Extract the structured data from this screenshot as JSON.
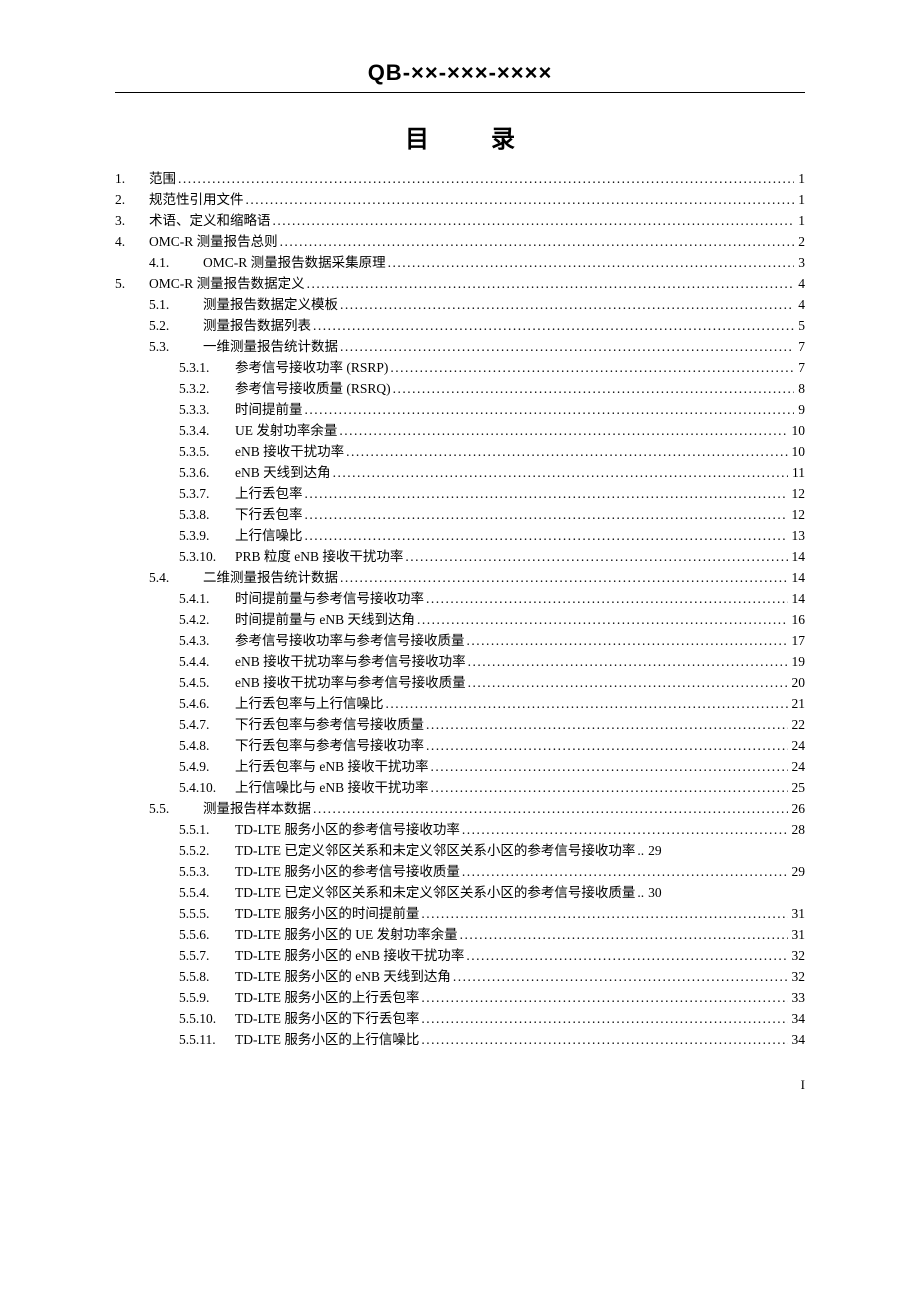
{
  "header_code": "QB-××-×××-××××",
  "toc_title": "目 录",
  "page_number": "I",
  "entries": [
    {
      "level": 0,
      "num": "1.",
      "label": "范围",
      "page": "1"
    },
    {
      "level": 0,
      "num": "2.",
      "label": "规范性引用文件",
      "page": "1"
    },
    {
      "level": 0,
      "num": "3.",
      "label": "术语、定义和缩略语",
      "page": "1"
    },
    {
      "level": 0,
      "num": "4.",
      "label": "OMC-R 测量报告总则 ",
      "page": "2"
    },
    {
      "level": 1,
      "num": "4.1.",
      "label": "OMC-R 测量报告数据采集原理 ",
      "page": "3"
    },
    {
      "level": 0,
      "num": "5.",
      "label": "OMC-R 测量报告数据定义 ",
      "page": "4"
    },
    {
      "level": 1,
      "num": "5.1.",
      "label": "测量报告数据定义模板",
      "page": "4"
    },
    {
      "level": 1,
      "num": "5.2.",
      "label": "测量报告数据列表",
      "page": "5"
    },
    {
      "level": 1,
      "num": "5.3.",
      "label": "一维测量报告统计数据",
      "page": "7"
    },
    {
      "level": 2,
      "num": "5.3.1.",
      "label": "参考信号接收功率 (RSRP)",
      "page": "7"
    },
    {
      "level": 2,
      "num": "5.3.2.",
      "label": "参考信号接收质量 (RSRQ)",
      "page": "8"
    },
    {
      "level": 2,
      "num": "5.3.3.",
      "label": "时间提前量 ",
      "page": "9"
    },
    {
      "level": 2,
      "num": "5.3.4.",
      "label": "UE 发射功率余量",
      "page": "10"
    },
    {
      "level": 2,
      "num": "5.3.5.",
      "label": "eNB 接收干扰功率",
      "page": "10"
    },
    {
      "level": 2,
      "num": "5.3.6.",
      "label": "eNB 天线到达角",
      "page": "11"
    },
    {
      "level": 2,
      "num": "5.3.7.",
      "label": "上行丢包率 ",
      "page": "12"
    },
    {
      "level": 2,
      "num": "5.3.8.",
      "label": "下行丢包率 ",
      "page": "12"
    },
    {
      "level": 2,
      "num": "5.3.9.",
      "label": "上行信噪比 ",
      "page": "13"
    },
    {
      "level": 2,
      "num": "5.3.10.",
      "label": "PRB 粒度 eNB 接收干扰功率 ",
      "page": "14"
    },
    {
      "level": 1,
      "num": "5.4.",
      "label": "二维测量报告统计数据",
      "page": "14"
    },
    {
      "level": 2,
      "num": "5.4.1.",
      "label": "时间提前量与参考信号接收功率 ",
      "page": "14"
    },
    {
      "level": 2,
      "num": "5.4.2.",
      "label": "时间提前量与 eNB 天线到达角 ",
      "page": "16"
    },
    {
      "level": 2,
      "num": "5.4.3.",
      "label": "参考信号接收功率与参考信号接收质量 ",
      "page": "17"
    },
    {
      "level": 2,
      "num": "5.4.4.",
      "label": "eNB 接收干扰功率与参考信号接收功率 ",
      "page": "19"
    },
    {
      "level": 2,
      "num": "5.4.5.",
      "label": "eNB 接收干扰功率与参考信号接收质量 ",
      "page": "20"
    },
    {
      "level": 2,
      "num": "5.4.6.",
      "label": "上行丢包率与上行信噪比 ",
      "page": "21"
    },
    {
      "level": 2,
      "num": "5.4.7.",
      "label": "下行丢包率与参考信号接收质量 ",
      "page": "22"
    },
    {
      "level": 2,
      "num": "5.4.8.",
      "label": "下行丢包率与参考信号接收功率 ",
      "page": "24"
    },
    {
      "level": 2,
      "num": "5.4.9.",
      "label": "上行丢包率与 eNB 接收干扰功率 ",
      "page": "24"
    },
    {
      "level": 2,
      "num": "5.4.10.",
      "label": "上行信噪比与 eNB 接收干扰功率",
      "page": "25"
    },
    {
      "level": 1,
      "num": "5.5.",
      "label": "测量报告样本数据",
      "page": "26"
    },
    {
      "level": 2,
      "num": "5.5.1.",
      "label": "TD-LTE 服务小区的参考信号接收功率 ",
      "page": "28"
    },
    {
      "level": 2,
      "num": "5.5.2.",
      "label": "TD-LTE 已定义邻区关系和未定义邻区关系小区的参考信号接收功率",
      "page": "29",
      "nodots": true
    },
    {
      "level": 2,
      "num": "5.5.3.",
      "label": "TD-LTE 服务小区的参考信号接收质量 ",
      "page": "29"
    },
    {
      "level": 2,
      "num": "5.5.4.",
      "label": "TD-LTE 已定义邻区关系和未定义邻区关系小区的参考信号接收质量",
      "page": "30",
      "nodots": true
    },
    {
      "level": 2,
      "num": "5.5.5.",
      "label": "TD-LTE 服务小区的时间提前量 ",
      "page": "31"
    },
    {
      "level": 2,
      "num": "5.5.6.",
      "label": "TD-LTE 服务小区的 UE 发射功率余量 ",
      "page": "31"
    },
    {
      "level": 2,
      "num": "5.5.7.",
      "label": "TD-LTE 服务小区的 eNB 接收干扰功率 ",
      "page": "32"
    },
    {
      "level": 2,
      "num": "5.5.8.",
      "label": "TD-LTE 服务小区的 eNB 天线到达角",
      "page": "32"
    },
    {
      "level": 2,
      "num": "5.5.9.",
      "label": "TD-LTE 服务小区的上行丢包率 ",
      "page": "33"
    },
    {
      "level": 2,
      "num": "5.5.10.",
      "label": "TD-LTE 服务小区的下行丢包率 ",
      "page": "34"
    },
    {
      "level": 2,
      "num": "5.5.11.",
      "label": "TD-LTE 服务小区的上行信噪比 ",
      "page": "34"
    }
  ]
}
